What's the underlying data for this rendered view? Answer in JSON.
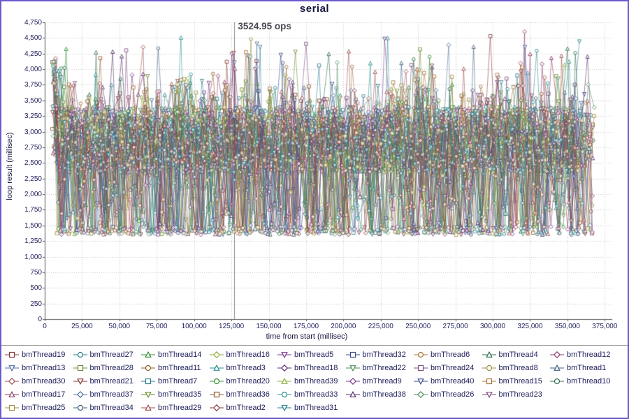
{
  "ui": {
    "frame_color": "#6a5acd",
    "grid_color": "#c4c4c4",
    "axis_color": "#555555",
    "text_color": "#15153f"
  },
  "chart_data": {
    "type": "line",
    "title": "serial",
    "xlabel": "time from start (millisec)",
    "ylabel": "loop result (millisec)",
    "xlim": [
      0,
      380000
    ],
    "ylim": [
      0,
      4750
    ],
    "x_tick_values": [
      0,
      25000,
      50000,
      75000,
      100000,
      125000,
      150000,
      175000,
      200000,
      225000,
      250000,
      275000,
      300000,
      325000,
      350000,
      375000
    ],
    "x_tick_labels": [
      "0",
      "25,000",
      "50,000",
      "75,000",
      "100,000",
      "125,000",
      "150,000",
      "175,000",
      "200,000",
      "225,000",
      "250,000",
      "275,000",
      "300,000",
      "325,000",
      "350,000",
      "375,000"
    ],
    "y_tick_values": [
      0,
      250,
      500,
      750,
      1000,
      1250,
      1500,
      1750,
      2000,
      2250,
      2500,
      2750,
      3000,
      3250,
      3500,
      3750,
      4000,
      4250,
      4500,
      4750
    ],
    "y_tick_labels": [
      "0",
      "250",
      "500",
      "750",
      "1,000",
      "1,250",
      "1,500",
      "1,750",
      "2,000",
      "2,250",
      "2,500",
      "2,750",
      "3,000",
      "3,250",
      "3,500",
      "3,750",
      "4,000",
      "4,250",
      "4,500",
      "4,750"
    ],
    "annotation": {
      "text": "3524.95 ops",
      "x": 127000
    },
    "distribution": {
      "note": "dense noisy band of samples per thread, read from pixels",
      "x_start": 5000,
      "x_end": 368000,
      "points_per_series": 115,
      "y_band": [
        2350,
        3400
      ],
      "y_floor": 1350,
      "y_peak": 4650,
      "first_point_band": [
        2600,
        4200
      ],
      "seed": 42
    },
    "legend_rows": [
      9,
      9,
      9,
      8,
      5
    ],
    "series": [
      {
        "name": "bmThread19",
        "color": "#8a3b3b",
        "shape": "square"
      },
      {
        "name": "bmThread27",
        "color": "#2e7f8f",
        "shape": "circle"
      },
      {
        "name": "bmThread14",
        "color": "#2f8f2f",
        "shape": "triangle"
      },
      {
        "name": "bmThread16",
        "color": "#8fae3c",
        "shape": "diamond"
      },
      {
        "name": "bmThread5",
        "color": "#7a3b8f",
        "shape": "triangle-down"
      },
      {
        "name": "bmThread32",
        "color": "#3b4b8f",
        "shape": "square"
      },
      {
        "name": "bmThread6",
        "color": "#a8743c",
        "shape": "circle"
      },
      {
        "name": "bmThread4",
        "color": "#2f6f4f",
        "shape": "triangle"
      },
      {
        "name": "bmThread12",
        "color": "#8f3b6b",
        "shape": "diamond"
      },
      {
        "name": "bmThread13",
        "color": "#4f6f9f",
        "shape": "triangle-down"
      },
      {
        "name": "bmThread28",
        "color": "#6f8f2f",
        "shape": "square"
      },
      {
        "name": "bmThread11",
        "color": "#8f5b2b",
        "shape": "circle"
      },
      {
        "name": "bmThread3",
        "color": "#2f8f8f",
        "shape": "triangle"
      },
      {
        "name": "bmThread18",
        "color": "#5b2f6f",
        "shape": "diamond"
      },
      {
        "name": "bmThread22",
        "color": "#4f8f5f",
        "shape": "triangle-down"
      },
      {
        "name": "bmThread24",
        "color": "#7f4f7f",
        "shape": "square"
      },
      {
        "name": "bmThread8",
        "color": "#9f8f3f",
        "shape": "circle"
      },
      {
        "name": "bmThread1",
        "color": "#3f5f7f",
        "shape": "triangle"
      },
      {
        "name": "bmThread30",
        "color": "#9f4f4f",
        "shape": "diamond"
      },
      {
        "name": "bmThread21",
        "color": "#8a3b3b",
        "shape": "triangle-down"
      },
      {
        "name": "bmThread7",
        "color": "#2e7f8f",
        "shape": "square"
      },
      {
        "name": "bmThread20",
        "color": "#2f8f2f",
        "shape": "circle"
      },
      {
        "name": "bmThread39",
        "color": "#8fae3c",
        "shape": "triangle"
      },
      {
        "name": "bmThread9",
        "color": "#7a3b8f",
        "shape": "diamond"
      },
      {
        "name": "bmThread40",
        "color": "#3b4b8f",
        "shape": "triangle-down"
      },
      {
        "name": "bmThread15",
        "color": "#a8743c",
        "shape": "square"
      },
      {
        "name": "bmThread10",
        "color": "#2f6f4f",
        "shape": "circle"
      },
      {
        "name": "bmThread17",
        "color": "#8f3b6b",
        "shape": "triangle"
      },
      {
        "name": "bmThread37",
        "color": "#4f6f9f",
        "shape": "diamond"
      },
      {
        "name": "bmThread35",
        "color": "#6f8f2f",
        "shape": "triangle-down"
      },
      {
        "name": "bmThread36",
        "color": "#8f5b2b",
        "shape": "square"
      },
      {
        "name": "bmThread33",
        "color": "#2f8f8f",
        "shape": "circle"
      },
      {
        "name": "bmThread38",
        "color": "#5b2f6f",
        "shape": "triangle"
      },
      {
        "name": "bmThread26",
        "color": "#4f8f5f",
        "shape": "diamond"
      },
      {
        "name": "bmThread23",
        "color": "#7f4f7f",
        "shape": "triangle-down"
      },
      {
        "name": "bmThread25",
        "color": "#9f8f3f",
        "shape": "square"
      },
      {
        "name": "bmThread34",
        "color": "#3f5f7f",
        "shape": "circle"
      },
      {
        "name": "bmThread29",
        "color": "#9f4f4f",
        "shape": "triangle"
      },
      {
        "name": "bmThread2",
        "color": "#8a3b3b",
        "shape": "diamond"
      },
      {
        "name": "bmThread31",
        "color": "#2e7f8f",
        "shape": "triangle-down"
      }
    ]
  }
}
